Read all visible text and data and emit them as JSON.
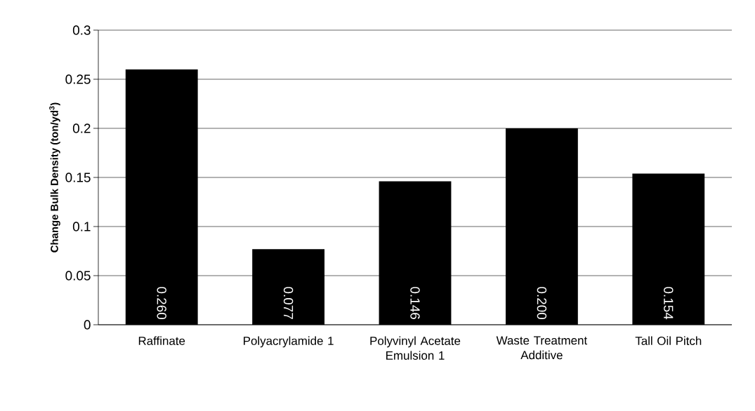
{
  "chart_data": {
    "type": "bar",
    "ylabel": "Change Bulk Density (ton/yd$^{3}$)",
    "categories": [
      "Raffinate",
      "Polyacrylamide 1",
      "Polyvinyl Acetate Emulsion 1",
      "Waste Treatment Additive",
      "Tall Oil Pitch"
    ],
    "values": [
      0.26,
      0.077,
      0.146,
      0.2,
      0.154
    ],
    "value_labels": [
      "0.260",
      "0.077",
      "0.146",
      "0.200",
      "0.154"
    ],
    "color": "#000000",
    "ylim": [
      0,
      0.3
    ],
    "yticks": [
      0,
      0.05,
      0.1,
      0.15,
      0.2,
      0.25,
      0.3
    ],
    "grid": "y"
  }
}
